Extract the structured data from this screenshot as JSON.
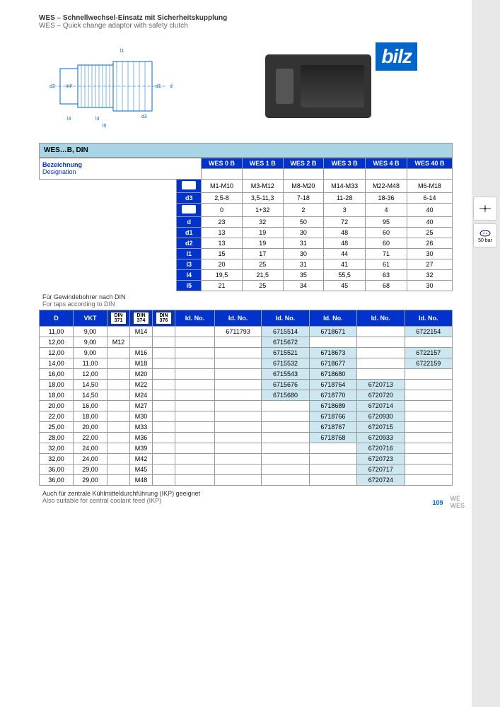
{
  "header": {
    "title_de": "WES – Schnellwechsel-Einsatz mit Sicherheitskupplung",
    "title_en": "WES – Quick change adaptor with safety clutch",
    "logo": "bilz"
  },
  "section1": {
    "title": "WES…B, DIN",
    "desig_de": "Bezeichnung",
    "desig_en": "Designation"
  },
  "cols": [
    "WES 0 B",
    "WES 1 B",
    "WES 2 B",
    "WES 3 B",
    "WES 4 B",
    "WES 40 B"
  ],
  "specs": {
    "r1": [
      "M1-M10",
      "M3-M12",
      "M8-M20",
      "M14-M33",
      "M22-M48",
      "M6-M18"
    ],
    "d3": [
      "2,5-8",
      "3,5-11,3",
      "7-18",
      "11-28",
      "18-36",
      "6-14"
    ],
    "r3": [
      "0",
      "1+32",
      "2",
      "3",
      "4",
      "40"
    ],
    "d": [
      "23",
      "32",
      "50",
      "72",
      "95",
      "40"
    ],
    "d1": [
      "13",
      "19",
      "30",
      "48",
      "60",
      "25"
    ],
    "d2": [
      "13",
      "19",
      "31",
      "48",
      "60",
      "26"
    ],
    "l1": [
      "15",
      "17",
      "30",
      "44",
      "71",
      "30"
    ],
    "l3": [
      "20",
      "25",
      "31",
      "41",
      "61",
      "27"
    ],
    "l4": [
      "19,5",
      "21,5",
      "35",
      "55,5",
      "63",
      "32"
    ],
    "l5": [
      "21",
      "25",
      "34",
      "45",
      "68",
      "30"
    ]
  },
  "note1": {
    "de": "Für Gewindebohrer nach DIN",
    "en": "For taps according to DIN"
  },
  "table2": {
    "headers": [
      "D",
      "VKT",
      "",
      "",
      "",
      "Id. No.",
      "Id. No.",
      "Id. No.",
      "Id. No.",
      "Id. No.",
      "Id. No."
    ],
    "din": [
      "DIN 371",
      "DIN 374",
      "DIN 376"
    ],
    "rows": [
      [
        "11,00",
        "9,00",
        "",
        "M14",
        "",
        "",
        "6711793",
        "6715514",
        "6718671",
        "",
        "6722154"
      ],
      [
        "12,00",
        "9,00",
        "M12",
        "",
        "",
        "",
        "",
        "6715672",
        "",
        "",
        ""
      ],
      [
        "12,00",
        "9,00",
        "",
        "M16",
        "",
        "",
        "",
        "6715521",
        "6718673",
        "",
        "6722157"
      ],
      [
        "14,00",
        "11,00",
        "",
        "M18",
        "",
        "",
        "",
        "6715532",
        "6718677",
        "",
        "6722159"
      ],
      [
        "16,00",
        "12,00",
        "",
        "M20",
        "",
        "",
        "",
        "6715543",
        "6718680",
        "",
        ""
      ],
      [
        "18,00",
        "14,50",
        "",
        "M22",
        "",
        "",
        "",
        "6715676",
        "6718764",
        "6720713",
        ""
      ],
      [
        "18,00",
        "14,50",
        "",
        "M24",
        "",
        "",
        "",
        "6715680",
        "6718770",
        "6720720",
        ""
      ],
      [
        "20,00",
        "16,00",
        "",
        "M27",
        "",
        "",
        "",
        "",
        "6718689",
        "6720714",
        ""
      ],
      [
        "22,00",
        "18,00",
        "",
        "M30",
        "",
        "",
        "",
        "",
        "6718766",
        "6720930",
        ""
      ],
      [
        "25,00",
        "20,00",
        "",
        "M33",
        "",
        "",
        "",
        "",
        "6718767",
        "6720715",
        ""
      ],
      [
        "28,00",
        "22,00",
        "",
        "M36",
        "",
        "",
        "",
        "",
        "6718768",
        "6720933",
        ""
      ],
      [
        "32,00",
        "24,00",
        "",
        "M39",
        "",
        "",
        "",
        "",
        "",
        "6720716",
        ""
      ],
      [
        "32,00",
        "24,00",
        "",
        "M42",
        "",
        "",
        "",
        "",
        "",
        "6720723",
        ""
      ],
      [
        "36,00",
        "29,00",
        "",
        "M45",
        "",
        "",
        "",
        "",
        "",
        "6720717",
        ""
      ],
      [
        "36,00",
        "29,00",
        "",
        "M48",
        "",
        "",
        "",
        "",
        "",
        "6720724",
        ""
      ]
    ]
  },
  "note2": {
    "de": "Auch für zentrale Kühlmitteldurchführung (IKP) geeignet",
    "en": "Also suitable for central coolant feed (IKP)"
  },
  "footer": {
    "page": "109",
    "t1": "WE",
    "t2": "WES"
  },
  "sidebar": {
    "pressure": "50 bar"
  },
  "highlights": [
    [
      0,
      7
    ],
    [
      0,
      8
    ],
    [
      0,
      10
    ],
    [
      1,
      7
    ],
    [
      2,
      7
    ],
    [
      2,
      8
    ],
    [
      2,
      10
    ],
    [
      3,
      7
    ],
    [
      3,
      8
    ],
    [
      3,
      10
    ],
    [
      4,
      7
    ],
    [
      4,
      8
    ],
    [
      5,
      7
    ],
    [
      5,
      8
    ],
    [
      5,
      9
    ],
    [
      6,
      7
    ],
    [
      6,
      8
    ],
    [
      6,
      9
    ],
    [
      7,
      8
    ],
    [
      7,
      9
    ],
    [
      8,
      8
    ],
    [
      8,
      9
    ],
    [
      9,
      8
    ],
    [
      9,
      9
    ],
    [
      10,
      8
    ],
    [
      10,
      9
    ],
    [
      11,
      9
    ],
    [
      12,
      9
    ],
    [
      13,
      9
    ],
    [
      14,
      9
    ]
  ]
}
